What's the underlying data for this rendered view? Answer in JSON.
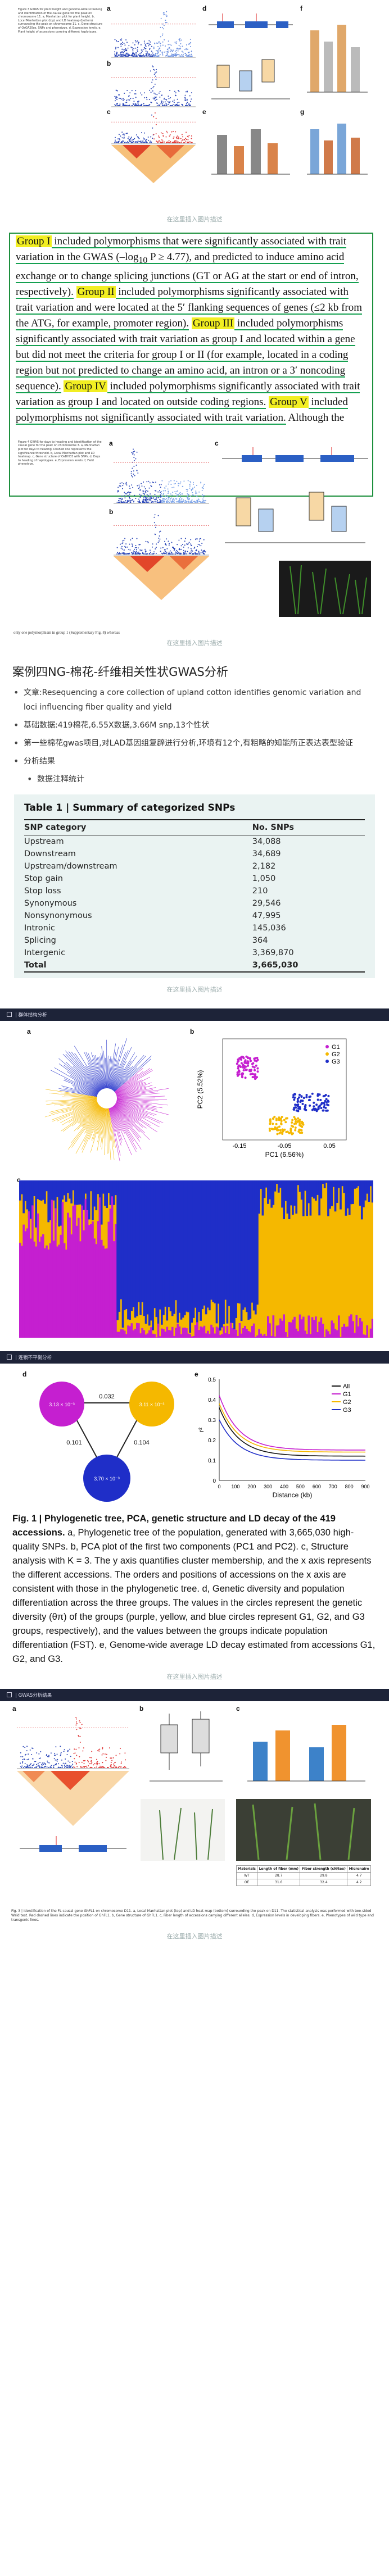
{
  "caption_link": "在这里插入图片描述",
  "fig2_top": {
    "caption": "Figure 3 GWAS for plant height and genome-wide screening and identification of the causal gene for the peak on chromosome 11. a, Manhattan plot for plant height. b, Local Manhattan plot (top) and LD heatmap (bottom) surrounding the peak on chromosome 11. c, Gene structure of OsGA20ox, SNPs and phenotype. d, Expression levels. e, Plant height of accessions carrying different haplotypes.",
    "panels": [
      "a",
      "b",
      "c",
      "d",
      "e",
      "f",
      "g"
    ]
  },
  "highlight_paragraph": {
    "g1": "Group I",
    "t1": " included polymorphisms that were significantly associated with trait variation in the GWAS (–log",
    "sub": "10",
    "t1b": " P ≥ 4.77), and predicted to induce amino acid exchange or to change splicing junctions (GT or AG at the start or end of intron, respectively).",
    "g2": "Group II",
    "t2": " included polymorphisms significantly associated with trait variation and were located at the 5′ flanking sequences of genes (≤2 kb from the ATG, for example, promoter region).",
    "g3": "Group III",
    "t3": " included polymorphisms significantly associated with trait variation as group I and located within a gene but did not meet the criteria for group I or II (for example, located in a coding region but not predicted to change an amino acid, an intron or a 3′ noncoding sequence).",
    "g4": "Group IV",
    "t4": " included polymorphisms significantly associated with trait variation as group I and located on outside coding regions.",
    "g5": "Group V",
    "t5": " included polymorphisms not significantly associated with trait variation.",
    "t6": " Although the"
  },
  "fig2_bottom": {
    "caption": "Figure 4 GWAS for days to heading and identification of the causal gene for the peak on chromosome 3. a, Manhattan plot for days to heading. Dashed line represents the significance threshold. b, Local Manhattan plot and LD heatmap. c, Gene structure of OsDHD3 with SNPs. d, Days to heading of haplotypes. e, Expression levels. f, Field phenotype.",
    "footnote": "only one polymorphism in group 1 (Supplementary Fig. 8) whereas"
  },
  "case": {
    "title": "案例四NG-棉花-纤维相关性状GWAS分析",
    "bullets": [
      "文章:Resequencing a core collection of upland cotton identifies genomic variation and loci influencing fiber quality and yield",
      "基础数据:419棉花,6.55X数据,3.66M snp,13个性状",
      "第一些棉花gwas项目,对LAD基因组复辟进行分析,环境有12个,有粗略的知能所正表达表型验证",
      "分析结果",
      "数据注释统计"
    ]
  },
  "table1": {
    "title": "Table 1 | Summary of categorized SNPs",
    "headers": [
      "SNP category",
      "No. SNPs"
    ],
    "rows": [
      [
        "Upstream",
        "34,088"
      ],
      [
        "Downstream",
        "34,689"
      ],
      [
        "Upstream/downstream",
        "2,182"
      ],
      [
        "Stop gain",
        "1,050"
      ],
      [
        "Stop loss",
        "210"
      ],
      [
        "Synonymous",
        "29,546"
      ],
      [
        "Nonsynonymous",
        "47,995"
      ],
      [
        "Intronic",
        "145,036"
      ],
      [
        "Splicing",
        "364"
      ],
      [
        "Intergenic",
        "3,369,870"
      ],
      [
        "Total",
        "3,665,030"
      ]
    ]
  },
  "sec1": "| 群体结构分析",
  "sec2": "| 连锁不平衡分析",
  "sec3": "| GWAS分析结果",
  "fig1": {
    "pca": {
      "xlabel": "PC1 (6.56%)",
      "ylabel": "PC2 (5.52%)",
      "xticks": [
        "-0.15",
        "-0.05",
        "0.05"
      ],
      "legend": [
        "G1",
        "G2",
        "G3"
      ]
    },
    "ld": {
      "xlabel": "Distance (kb)",
      "ylabel": "r²",
      "xticks": [
        "0",
        "100",
        "200",
        "300",
        "400",
        "500",
        "600",
        "700",
        "800",
        "900"
      ],
      "yticks": [
        "0",
        "0.1",
        "0.2",
        "0.3",
        "0.4",
        "0.5"
      ],
      "legend": [
        "All",
        "G1",
        "G2",
        "G3"
      ]
    },
    "diversity": {
      "g1": "3.13 × 10⁻³",
      "g2": "3.11 × 10⁻³",
      "g3": "3.70 × 10⁻³",
      "fst12": "0.032",
      "fst13": "0.101",
      "fst23": "0.104"
    },
    "caption_bold": "Fig. 1 | Phylogenetic tree, PCA, genetic structure and LD decay of the 419 accessions.",
    "caption": " a, Phylogenetic tree of the population, generated with 3,665,030 high-quality SNPs. b, PCA plot of the first two components (PC1 and PC2). c, Structure analysis with K = 3. The y axis quantifies cluster membership, and the x axis represents the different accessions. The orders and positions of accessions on the x axis are consistent with those in the phylogenetic tree. d, Genetic diversity and population differentiation across the three groups. The values in the circles represent the genetic diversity (θπ) of the groups (purple, yellow, and blue circles represent G1, G2, and G3 groups, respectively), and the values between the groups indicate population differentiation (FST). e, Genome-wide average LD decay estimated from accessions G1, G2, and G3."
  },
  "fig3": {
    "caption": "Fig. 3 | Identification of the FL causal gene GhFL1 on chromosome D11. a, Local Manhattan plot (top) and LD heat map (bottom) surrounding the peak on D11. The statistical analysis was performed with two-sided Wald test. Red dashed lines indicate the position of GhFL1. b, Gene structure of GhFL1. c, Fiber length of accessions carrying different alleles. d, Expression levels in developing fibers. e, Phenotypes of wild type and transgenic lines.",
    "table_headers": [
      "Materials",
      "Length of fiber (mm)",
      "Fiber strength (cN/tex)",
      "Micronaire"
    ],
    "table_rows": [
      [
        "WT",
        "28.7",
        "29.8",
        "4.7"
      ],
      [
        "OE",
        "31.6",
        "32.4",
        "4.2"
      ]
    ]
  },
  "colors": {
    "highlight": "#f2ee22",
    "underline": "#14a050",
    "frame": "#1c8f3c",
    "g1": "#c51fd0",
    "g2": "#f5b800",
    "g3": "#1f2ec8",
    "dark": "#1d2338"
  }
}
